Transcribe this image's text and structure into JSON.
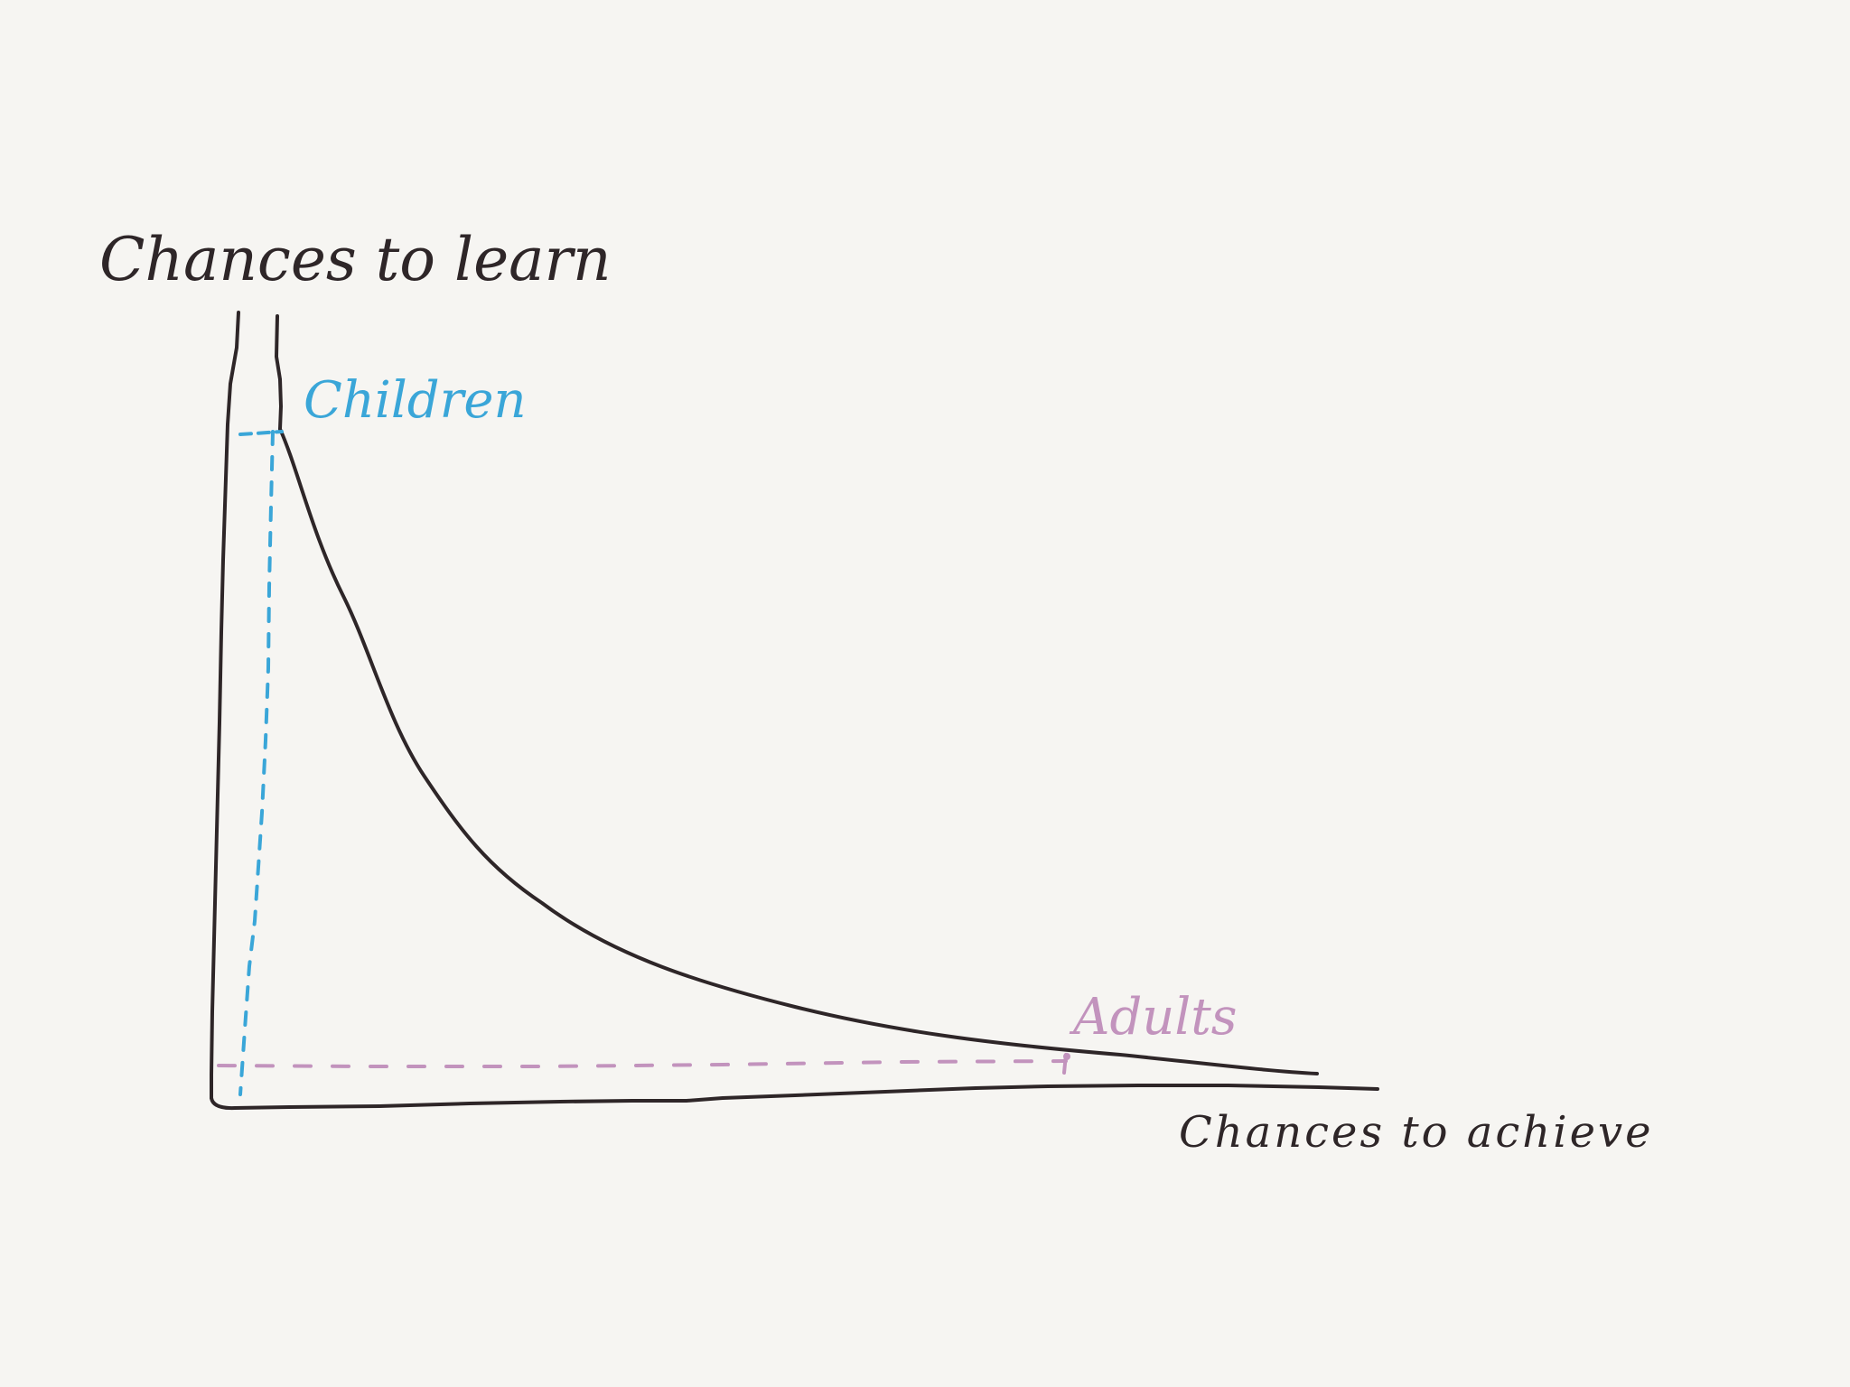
{
  "diagram": {
    "y_axis_label": "Chances to learn",
    "x_axis_label": "Chances to achieve",
    "annotations": [
      {
        "label": "Children",
        "color": "#3aa6d8"
      },
      {
        "label": "Adults",
        "color": "#c293bd"
      }
    ],
    "colors": {
      "ink": "#2e2628",
      "background": "#f6f5f2"
    }
  }
}
